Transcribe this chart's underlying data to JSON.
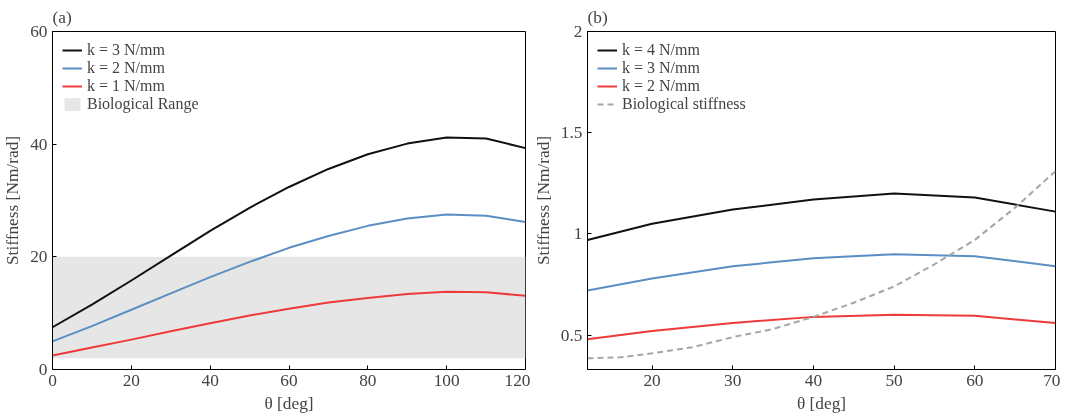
{
  "chart_data": [
    {
      "type": "line",
      "annotations": [
        "(a)"
      ],
      "xlabel": "θ [deg]",
      "ylabel": "Stiffness [Nm/rad]",
      "x": [
        0,
        10,
        20,
        30,
        40,
        50,
        60,
        70,
        80,
        90,
        100,
        110,
        120
      ],
      "series": [
        {
          "name": "k = 3 N/mm",
          "color": "#111111",
          "values": [
            7.5,
            11.5,
            15.8,
            20.2,
            24.6,
            28.7,
            32.4,
            35.6,
            38.2,
            40.1,
            41.2,
            41.0,
            39.3
          ]
        },
        {
          "name": "k = 2 N/mm",
          "color": "#5b8fc4",
          "values": [
            5.0,
            7.7,
            10.6,
            13.5,
            16.4,
            19.1,
            21.6,
            23.7,
            25.5,
            26.8,
            27.5,
            27.3,
            26.2
          ]
        },
        {
          "name": "k = 1 N/mm",
          "color": "#ee3a3a",
          "values": [
            2.5,
            3.9,
            5.3,
            6.8,
            8.2,
            9.6,
            10.8,
            11.9,
            12.7,
            13.4,
            13.8,
            13.7,
            13.1
          ]
        }
      ],
      "bands": [
        {
          "axis": "y",
          "from": 2,
          "to": 20,
          "label": "Biological Range",
          "color": "#e6e6e6"
        }
      ],
      "xlim": [
        0,
        120
      ],
      "xticks": [
        0,
        20,
        40,
        60,
        80,
        100,
        120
      ],
      "ylim": [
        0,
        60
      ],
      "yticks": [
        0,
        20,
        40,
        60
      ],
      "legend": "top left",
      "grid": false
    },
    {
      "type": "line",
      "annotations": [
        "(b)"
      ],
      "xlabel": "θ [deg]",
      "ylabel": "Stiffness [Nm/rad]",
      "series": [
        {
          "name": "k = 4 N/mm",
          "color": "#111111",
          "x": [
            12,
            20,
            30,
            40,
            50,
            60,
            70
          ],
          "values": [
            0.97,
            1.05,
            1.12,
            1.17,
            1.2,
            1.18,
            1.11
          ]
        },
        {
          "name": "k = 3 N/mm",
          "color": "#5b8fc4",
          "x": [
            12,
            20,
            30,
            40,
            50,
            60,
            70
          ],
          "values": [
            0.72,
            0.78,
            0.84,
            0.88,
            0.9,
            0.89,
            0.84
          ]
        },
        {
          "name": "k = 2 N/mm",
          "color": "#ee3a3a",
          "x": [
            12,
            20,
            30,
            40,
            50,
            60,
            70
          ],
          "values": [
            0.48,
            0.52,
            0.56,
            0.59,
            0.6,
            0.595,
            0.56
          ]
        },
        {
          "name": "Biological stiffness",
          "color": "#a6a6a6",
          "line_style": "dashed",
          "x": [
            12,
            16,
            20,
            25,
            30,
            35,
            40,
            45,
            50,
            55,
            60,
            65,
            70
          ],
          "values": [
            0.385,
            0.39,
            0.41,
            0.44,
            0.49,
            0.53,
            0.59,
            0.66,
            0.74,
            0.85,
            0.97,
            1.13,
            1.31
          ]
        }
      ],
      "xlim": [
        12,
        70
      ],
      "xticks": [
        20,
        30,
        40,
        50,
        60,
        70
      ],
      "ylim": [
        0.33,
        2
      ],
      "yticks": [
        0.5,
        1,
        1.5,
        2
      ],
      "legend": "top left",
      "grid": false
    }
  ]
}
